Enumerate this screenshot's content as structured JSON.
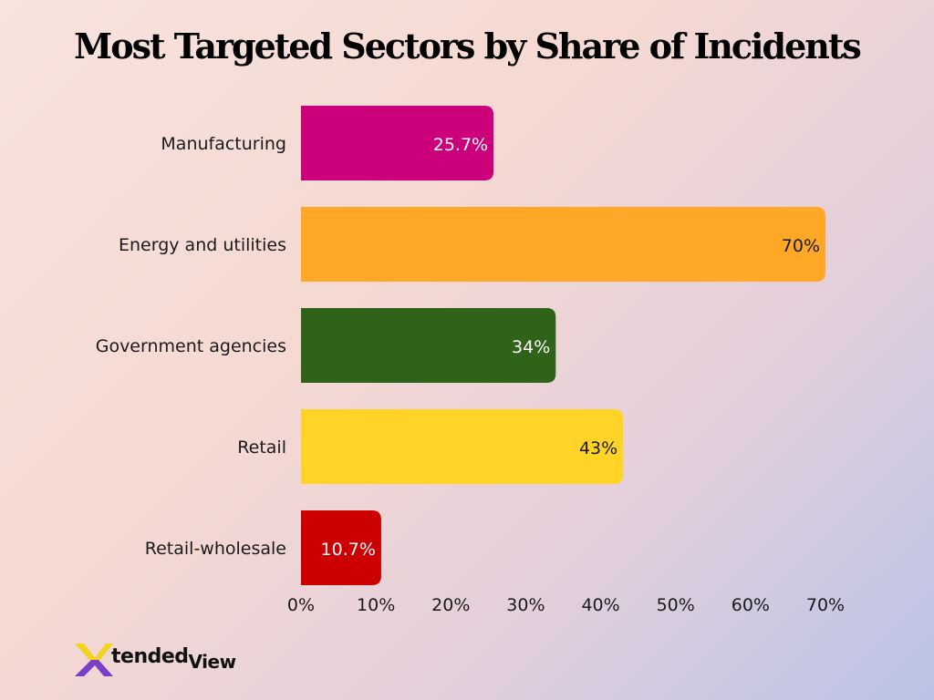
{
  "chart_data": {
    "type": "bar",
    "orientation": "horizontal",
    "title": "Most Targeted Sectors by Share of Incidents",
    "categories": [
      "Manufacturing",
      "Energy and utilities",
      "Government agencies",
      "Retail",
      "Retail-wholesale"
    ],
    "values": [
      25.7,
      70,
      34,
      43,
      10.7
    ],
    "value_labels": [
      "25.7%",
      "70%",
      "34%",
      "43%",
      "10.7%"
    ],
    "colors": [
      "#cc007a",
      "#ffa726",
      "#2e6319",
      "#ffd426",
      "#cc0000"
    ],
    "value_label_colors": [
      "#ffffff",
      "#1a1a1a",
      "#ffffff",
      "#1a1a1a",
      "#ffffff"
    ],
    "x_ticks": [
      "0%",
      "10%",
      "20%",
      "30%",
      "40%",
      "50%",
      "60%",
      "70%"
    ],
    "xlim": [
      0,
      70
    ],
    "xlabel": "",
    "ylabel": "",
    "grid": false
  },
  "logo": {
    "text_part1": "tended",
    "text_part2": "View",
    "mark_colors": [
      "#f2d21b",
      "#7a3fc8"
    ]
  }
}
